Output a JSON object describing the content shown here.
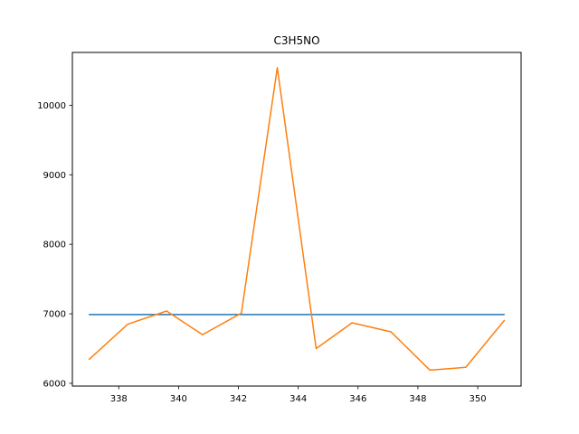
{
  "chart_data": {
    "type": "line",
    "title": "C3H5NO",
    "xlabel": "",
    "ylabel": "",
    "xlim": [
      336.45,
      351.45
    ],
    "ylim": [
      5960,
      10760
    ],
    "xticks": [
      338,
      340,
      342,
      344,
      346,
      348,
      350
    ],
    "yticks": [
      6000,
      7000,
      8000,
      9000,
      10000
    ],
    "grid": false,
    "series": [
      {
        "color": "#1f77b4",
        "x": [
          337.0,
          350.9
        ],
        "y": [
          6990,
          6990
        ]
      },
      {
        "color": "#ff7f0e",
        "x": [
          337.0,
          338.3,
          339.6,
          340.8,
          342.1,
          343.3,
          344.6,
          345.8,
          347.1,
          348.4,
          349.6,
          350.9
        ],
        "y": [
          6340,
          6850,
          7040,
          6700,
          7010,
          10540,
          6500,
          6870,
          6740,
          6190,
          6230,
          6910
        ]
      }
    ]
  }
}
